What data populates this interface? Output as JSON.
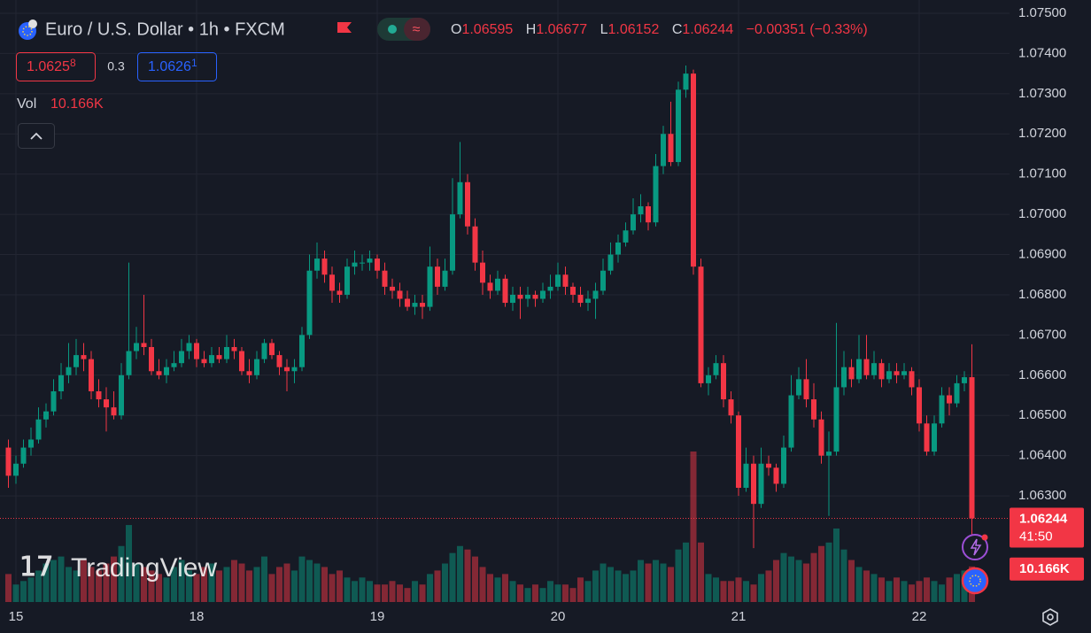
{
  "chart_data": {
    "type": "candlestick",
    "title": "Euro / U.S. Dollar • 1h • FXCM",
    "legend": {
      "open_label": "O",
      "open": 1.06595,
      "high_label": "H",
      "high": 1.06677,
      "low_label": "L",
      "low": 1.06152,
      "close_label": "C",
      "close": 1.06244,
      "change": "−0.00351 (−0.33%)"
    },
    "bid": {
      "price": "1.0625",
      "pip": "8"
    },
    "spread": 0.3,
    "ask": {
      "price": "1.0626",
      "pip": "1"
    },
    "volume_label": "Vol",
    "volume_value_label": "10.166K",
    "watermark": "TradingView",
    "last_price": 1.06244,
    "countdown": "41:50",
    "up_color": "#089981",
    "down_color": "#f23645",
    "grid": true,
    "ylim": [
      1.06036,
      1.07533
    ],
    "yticks": [
      {
        "value": 1.075,
        "label": "1.07500"
      },
      {
        "value": 1.074,
        "label": "1.07400"
      },
      {
        "value": 1.073,
        "label": "1.07300"
      },
      {
        "value": 1.072,
        "label": "1.07200"
      },
      {
        "value": 1.071,
        "label": "1.07100"
      },
      {
        "value": 1.07,
        "label": "1.07000"
      },
      {
        "value": 1.069,
        "label": "1.06900"
      },
      {
        "value": 1.068,
        "label": "1.06800"
      },
      {
        "value": 1.067,
        "label": "1.06700"
      },
      {
        "value": 1.066,
        "label": "1.06600"
      },
      {
        "value": 1.065,
        "label": "1.06500"
      },
      {
        "value": 1.064,
        "label": "1.06400"
      },
      {
        "value": 1.063,
        "label": "1.06300"
      }
    ],
    "volume_lim": [
      0,
      172
    ],
    "categories": [
      null,
      "15",
      null,
      null,
      null,
      null,
      null,
      null,
      null,
      null,
      null,
      null,
      null,
      null,
      null,
      null,
      null,
      null,
      null,
      null,
      null,
      null,
      null,
      null,
      null,
      "18",
      null,
      null,
      null,
      null,
      null,
      null,
      null,
      null,
      null,
      null,
      null,
      null,
      null,
      null,
      null,
      null,
      null,
      null,
      null,
      null,
      null,
      null,
      null,
      "19",
      null,
      null,
      null,
      null,
      null,
      null,
      null,
      null,
      null,
      null,
      null,
      null,
      null,
      null,
      null,
      null,
      null,
      null,
      null,
      null,
      null,
      null,
      null,
      "20",
      null,
      null,
      null,
      null,
      null,
      null,
      null,
      null,
      null,
      null,
      null,
      null,
      null,
      null,
      null,
      null,
      null,
      null,
      null,
      null,
      null,
      null,
      null,
      "21",
      null,
      null,
      null,
      null,
      null,
      null,
      null,
      null,
      null,
      null,
      null,
      null,
      null,
      null,
      null,
      null,
      null,
      null,
      null,
      null,
      null,
      null,
      null,
      "22",
      null,
      null,
      null,
      null,
      null,
      null,
      null
    ],
    "ohlc": [
      [
        1.0642,
        1.0644,
        1.0632,
        1.0635
      ],
      [
        1.0635,
        1.064,
        1.0633,
        1.0638
      ],
      [
        1.0638,
        1.0644,
        1.0637,
        1.0642
      ],
      [
        1.0642,
        1.0647,
        1.064,
        1.0644
      ],
      [
        1.0644,
        1.0652,
        1.0643,
        1.0649
      ],
      [
        1.0649,
        1.0653,
        1.0647,
        1.0651
      ],
      [
        1.0651,
        1.0659,
        1.065,
        1.0656
      ],
      [
        1.0656,
        1.0663,
        1.0654,
        1.066
      ],
      [
        1.066,
        1.0668,
        1.0658,
        1.0662
      ],
      [
        1.0662,
        1.0669,
        1.066,
        1.0665
      ],
      [
        1.0665,
        1.0668,
        1.0661,
        1.0664
      ],
      [
        1.0664,
        1.0666,
        1.0654,
        1.0656
      ],
      [
        1.0656,
        1.0659,
        1.0652,
        1.0654
      ],
      [
        1.0654,
        1.0657,
        1.0646,
        1.0652
      ],
      [
        1.0652,
        1.0656,
        1.0649,
        1.065
      ],
      [
        1.065,
        1.0663,
        1.0649,
        1.066
      ],
      [
        1.066,
        1.0688,
        1.0659,
        1.0666
      ],
      [
        1.0666,
        1.0672,
        1.0664,
        1.0668
      ],
      [
        1.0668,
        1.068,
        1.0665,
        1.0667
      ],
      [
        1.0667,
        1.0669,
        1.066,
        1.0661
      ],
      [
        1.0661,
        1.0664,
        1.0659,
        1.066
      ],
      [
        1.066,
        1.0664,
        1.0658,
        1.0662
      ],
      [
        1.0662,
        1.0666,
        1.0661,
        1.0663
      ],
      [
        1.0663,
        1.0669,
        1.0662,
        1.0666
      ],
      [
        1.0666,
        1.067,
        1.0664,
        1.0668
      ],
      [
        1.0668,
        1.0669,
        1.0662,
        1.0664
      ],
      [
        1.0664,
        1.0666,
        1.0662,
        1.0663
      ],
      [
        1.0663,
        1.0667,
        1.0662,
        1.0665
      ],
      [
        1.0665,
        1.0667,
        1.0663,
        1.0664
      ],
      [
        1.0664,
        1.067,
        1.0663,
        1.0667
      ],
      [
        1.0667,
        1.0669,
        1.0664,
        1.0666
      ],
      [
        1.0666,
        1.0667,
        1.066,
        1.0661
      ],
      [
        1.0661,
        1.0664,
        1.0658,
        1.066
      ],
      [
        1.066,
        1.0666,
        1.0659,
        1.0664
      ],
      [
        1.0664,
        1.0669,
        1.0663,
        1.0668
      ],
      [
        1.0668,
        1.0669,
        1.0664,
        1.0665
      ],
      [
        1.0665,
        1.0666,
        1.066,
        1.0662
      ],
      [
        1.0662,
        1.0664,
        1.0656,
        1.0661
      ],
      [
        1.0661,
        1.0664,
        1.0658,
        1.0662
      ],
      [
        1.0662,
        1.0672,
        1.0661,
        1.067
      ],
      [
        1.067,
        1.069,
        1.0669,
        1.0686
      ],
      [
        1.0686,
        1.0693,
        1.0684,
        1.0689
      ],
      [
        1.0689,
        1.0691,
        1.0683,
        1.0685
      ],
      [
        1.0685,
        1.0687,
        1.0678,
        1.0681
      ],
      [
        1.0681,
        1.0683,
        1.0678,
        1.068
      ],
      [
        1.068,
        1.0689,
        1.0679,
        1.0687
      ],
      [
        1.0687,
        1.0691,
        1.0685,
        1.0688
      ],
      [
        1.0688,
        1.069,
        1.0686,
        1.0688
      ],
      [
        1.0688,
        1.0691,
        1.0686,
        1.0689
      ],
      [
        1.0689,
        1.069,
        1.0684,
        1.0686
      ],
      [
        1.0686,
        1.0688,
        1.068,
        1.0682
      ],
      [
        1.0682,
        1.0684,
        1.0679,
        1.0681
      ],
      [
        1.0681,
        1.0683,
        1.0677,
        1.0679
      ],
      [
        1.0679,
        1.0681,
        1.0676,
        1.0677
      ],
      [
        1.0677,
        1.068,
        1.0675,
        1.0678
      ],
      [
        1.0678,
        1.068,
        1.0674,
        1.0677
      ],
      [
        1.0677,
        1.0692,
        1.0676,
        1.0687
      ],
      [
        1.0687,
        1.0689,
        1.068,
        1.0682
      ],
      [
        1.0682,
        1.0689,
        1.0681,
        1.0686
      ],
      [
        1.0686,
        1.0709,
        1.0685,
        1.07
      ],
      [
        1.07,
        1.0718,
        1.0699,
        1.0708
      ],
      [
        1.0708,
        1.071,
        1.0695,
        1.0697
      ],
      [
        1.0697,
        1.0699,
        1.0686,
        1.0688
      ],
      [
        1.0688,
        1.0691,
        1.068,
        1.0683
      ],
      [
        1.0683,
        1.0685,
        1.0679,
        1.0681
      ],
      [
        1.0681,
        1.0686,
        1.068,
        1.0684
      ],
      [
        1.0684,
        1.0685,
        1.0677,
        1.0678
      ],
      [
        1.0678,
        1.0682,
        1.0676,
        1.068
      ],
      [
        1.068,
        1.0682,
        1.0674,
        1.0679
      ],
      [
        1.0679,
        1.0682,
        1.0677,
        1.068
      ],
      [
        1.068,
        1.0681,
        1.0677,
        1.0679
      ],
      [
        1.0679,
        1.0683,
        1.0678,
        1.0681
      ],
      [
        1.0681,
        1.0685,
        1.0679,
        1.0682
      ],
      [
        1.0682,
        1.0688,
        1.0681,
        1.0685
      ],
      [
        1.0685,
        1.0687,
        1.068,
        1.0682
      ],
      [
        1.0682,
        1.0683,
        1.0678,
        1.068
      ],
      [
        1.068,
        1.0682,
        1.0677,
        1.0678
      ],
      [
        1.0678,
        1.0681,
        1.0676,
        1.0679
      ],
      [
        1.0679,
        1.0683,
        1.0674,
        1.0681
      ],
      [
        1.0681,
        1.0689,
        1.068,
        1.0686
      ],
      [
        1.0686,
        1.0693,
        1.0685,
        1.069
      ],
      [
        1.069,
        1.0695,
        1.0688,
        1.0693
      ],
      [
        1.0693,
        1.0698,
        1.0692,
        1.0696
      ],
      [
        1.0696,
        1.0704,
        1.0695,
        1.07
      ],
      [
        1.07,
        1.0705,
        1.0698,
        1.0702
      ],
      [
        1.0702,
        1.0703,
        1.0696,
        1.0698
      ],
      [
        1.0698,
        1.0715,
        1.0697,
        1.0712
      ],
      [
        1.0712,
        1.0722,
        1.071,
        1.072
      ],
      [
        1.072,
        1.0728,
        1.0712,
        1.0713
      ],
      [
        1.0713,
        1.0733,
        1.0712,
        1.0731
      ],
      [
        1.0731,
        1.0737,
        1.0729,
        1.0735
      ],
      [
        1.0735,
        1.0736,
        1.0685,
        1.0687
      ],
      [
        1.0687,
        1.0689,
        1.0657,
        1.0658
      ],
      [
        1.0658,
        1.0662,
        1.0655,
        1.066
      ],
      [
        1.066,
        1.0665,
        1.0659,
        1.0663
      ],
      [
        1.0663,
        1.0665,
        1.0652,
        1.0654
      ],
      [
        1.0654,
        1.0656,
        1.0648,
        1.065
      ],
      [
        1.065,
        1.0651,
        1.063,
        1.0632
      ],
      [
        1.0632,
        1.0642,
        1.0631,
        1.0638
      ],
      [
        1.0638,
        1.064,
        1.0617,
        1.0628
      ],
      [
        1.0628,
        1.0642,
        1.0627,
        1.0638
      ],
      [
        1.0638,
        1.064,
        1.0635,
        1.0637
      ],
      [
        1.0637,
        1.0638,
        1.0631,
        1.0633
      ],
      [
        1.0633,
        1.0645,
        1.0632,
        1.0642
      ],
      [
        1.0642,
        1.066,
        1.0641,
        1.0655
      ],
      [
        1.0655,
        1.0662,
        1.0654,
        1.0659
      ],
      [
        1.0659,
        1.0664,
        1.0652,
        1.0654
      ],
      [
        1.0654,
        1.0658,
        1.0647,
        1.0649
      ],
      [
        1.0649,
        1.0651,
        1.0638,
        1.064
      ],
      [
        1.064,
        1.0646,
        1.0625,
        1.0641
      ],
      [
        1.0641,
        1.0673,
        1.064,
        1.0657
      ],
      [
        1.0657,
        1.0666,
        1.0655,
        1.0662
      ],
      [
        1.0662,
        1.0664,
        1.0657,
        1.0659
      ],
      [
        1.0659,
        1.067,
        1.0658,
        1.0664
      ],
      [
        1.0664,
        1.067,
        1.0659,
        1.066
      ],
      [
        1.066,
        1.0666,
        1.0659,
        1.0663
      ],
      [
        1.0663,
        1.0664,
        1.0657,
        1.0659
      ],
      [
        1.0659,
        1.0663,
        1.0658,
        1.0661
      ],
      [
        1.0661,
        1.0663,
        1.0658,
        1.066
      ],
      [
        1.066,
        1.0663,
        1.0659,
        1.0661
      ],
      [
        1.0661,
        1.0662,
        1.0655,
        1.0657
      ],
      [
        1.0657,
        1.0659,
        1.0646,
        1.0648
      ],
      [
        1.0648,
        1.065,
        1.064,
        1.0641
      ],
      [
        1.0641,
        1.065,
        1.064,
        1.0648
      ],
      [
        1.0648,
        1.0657,
        1.0647,
        1.0655
      ],
      [
        1.0655,
        1.0657,
        1.065,
        1.0653
      ],
      [
        1.0653,
        1.066,
        1.0652,
        1.0658
      ],
      [
        1.0658,
        1.0661,
        1.0656,
        1.06595
      ],
      [
        1.06595,
        1.06677,
        1.06152,
        1.06244
      ]
    ],
    "volume": [
      8,
      5,
      6,
      7,
      9,
      11,
      12,
      13,
      10,
      9,
      12,
      10,
      9,
      11,
      13,
      16,
      22,
      11,
      10,
      9,
      8,
      7,
      10,
      12,
      9,
      8,
      10,
      11,
      9,
      10,
      12,
      11,
      9,
      10,
      13,
      8,
      10,
      11,
      9,
      13,
      12,
      11,
      10,
      8,
      9,
      7,
      6,
      7,
      6,
      5,
      5,
      6,
      5,
      4,
      6,
      5,
      8,
      9,
      11,
      14,
      16,
      15,
      13,
      10,
      8,
      7,
      8,
      6,
      5,
      4,
      5,
      4,
      6,
      5,
      5,
      4,
      7,
      6,
      9,
      11,
      10,
      9,
      8,
      9,
      12,
      11,
      12,
      11,
      10,
      15,
      17,
      43,
      17,
      8,
      7,
      6,
      6,
      7,
      6,
      5,
      8,
      9,
      12,
      14,
      13,
      12,
      11,
      14,
      16,
      17,
      21,
      15,
      12,
      10,
      9,
      8,
      7,
      6,
      7,
      6,
      5,
      6,
      7,
      6,
      5,
      7,
      8,
      9,
      10.166
    ]
  }
}
